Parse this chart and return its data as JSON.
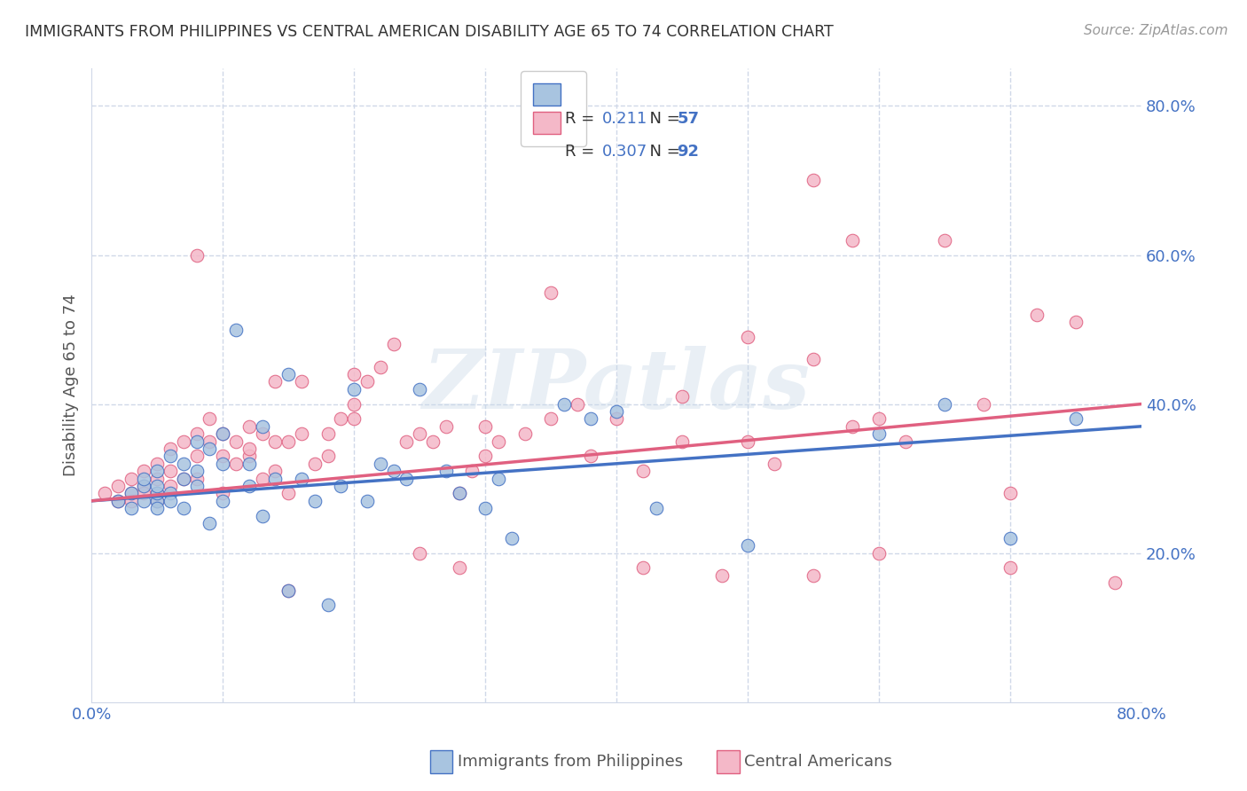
{
  "title": "IMMIGRANTS FROM PHILIPPINES VS CENTRAL AMERICAN DISABILITY AGE 65 TO 74 CORRELATION CHART",
  "source": "Source: ZipAtlas.com",
  "ylabel": "Disability Age 65 to 74",
  "xlim": [
    0.0,
    0.8
  ],
  "ylim": [
    0.0,
    0.85
  ],
  "yticks": [
    0.2,
    0.4,
    0.6,
    0.8
  ],
  "ytick_labels": [
    "20.0%",
    "40.0%",
    "60.0%",
    "80.0%"
  ],
  "xticks": [
    0.0,
    0.1,
    0.2,
    0.3,
    0.4,
    0.5,
    0.6,
    0.7,
    0.8
  ],
  "xtick_labels": [
    "0.0%",
    "",
    "",
    "",
    "",
    "",
    "",
    "",
    "80.0%"
  ],
  "blue_color": "#a8c4e0",
  "blue_line_color": "#4472c4",
  "pink_color": "#f4b8c8",
  "pink_line_color": "#e06080",
  "legend_blue_R": "0.211",
  "legend_blue_N": "57",
  "legend_pink_R": "0.307",
  "legend_pink_N": "92",
  "watermark": "ZIPatlas",
  "blue_scatter_x": [
    0.02,
    0.03,
    0.03,
    0.04,
    0.04,
    0.04,
    0.05,
    0.05,
    0.05,
    0.05,
    0.05,
    0.06,
    0.06,
    0.06,
    0.07,
    0.07,
    0.07,
    0.08,
    0.08,
    0.08,
    0.09,
    0.09,
    0.1,
    0.1,
    0.1,
    0.11,
    0.12,
    0.12,
    0.13,
    0.13,
    0.14,
    0.15,
    0.15,
    0.16,
    0.17,
    0.18,
    0.19,
    0.2,
    0.21,
    0.22,
    0.23,
    0.24,
    0.25,
    0.27,
    0.28,
    0.3,
    0.31,
    0.32,
    0.36,
    0.38,
    0.4,
    0.43,
    0.5,
    0.6,
    0.65,
    0.7,
    0.75
  ],
  "blue_scatter_y": [
    0.27,
    0.28,
    0.26,
    0.29,
    0.3,
    0.27,
    0.27,
    0.26,
    0.31,
    0.28,
    0.29,
    0.33,
    0.28,
    0.27,
    0.3,
    0.32,
    0.26,
    0.35,
    0.31,
    0.29,
    0.34,
    0.24,
    0.36,
    0.32,
    0.27,
    0.5,
    0.32,
    0.29,
    0.37,
    0.25,
    0.3,
    0.15,
    0.44,
    0.3,
    0.27,
    0.13,
    0.29,
    0.42,
    0.27,
    0.32,
    0.31,
    0.3,
    0.42,
    0.31,
    0.28,
    0.26,
    0.3,
    0.22,
    0.4,
    0.38,
    0.39,
    0.26,
    0.21,
    0.36,
    0.4,
    0.22,
    0.38
  ],
  "pink_scatter_x": [
    0.01,
    0.02,
    0.02,
    0.03,
    0.03,
    0.03,
    0.04,
    0.04,
    0.04,
    0.05,
    0.05,
    0.05,
    0.05,
    0.06,
    0.06,
    0.06,
    0.07,
    0.07,
    0.08,
    0.08,
    0.08,
    0.09,
    0.09,
    0.1,
    0.1,
    0.1,
    0.11,
    0.11,
    0.12,
    0.12,
    0.12,
    0.13,
    0.13,
    0.14,
    0.14,
    0.14,
    0.15,
    0.15,
    0.16,
    0.16,
    0.17,
    0.18,
    0.19,
    0.2,
    0.2,
    0.21,
    0.22,
    0.23,
    0.24,
    0.25,
    0.26,
    0.27,
    0.28,
    0.29,
    0.3,
    0.31,
    0.33,
    0.35,
    0.37,
    0.4,
    0.42,
    0.45,
    0.48,
    0.5,
    0.52,
    0.55,
    0.58,
    0.6,
    0.62,
    0.55,
    0.58,
    0.65,
    0.68,
    0.7,
    0.72,
    0.5,
    0.3,
    0.25,
    0.35,
    0.45,
    0.55,
    0.6,
    0.7,
    0.75,
    0.78,
    0.2,
    0.38,
    0.28,
    0.15,
    0.42,
    0.18,
    0.08
  ],
  "pink_scatter_y": [
    0.28,
    0.29,
    0.27,
    0.28,
    0.3,
    0.27,
    0.31,
    0.29,
    0.28,
    0.32,
    0.3,
    0.28,
    0.27,
    0.34,
    0.31,
    0.29,
    0.35,
    0.3,
    0.36,
    0.33,
    0.3,
    0.35,
    0.38,
    0.33,
    0.36,
    0.28,
    0.35,
    0.32,
    0.37,
    0.33,
    0.34,
    0.36,
    0.3,
    0.43,
    0.35,
    0.31,
    0.35,
    0.28,
    0.43,
    0.36,
    0.32,
    0.36,
    0.38,
    0.44,
    0.4,
    0.43,
    0.45,
    0.48,
    0.35,
    0.36,
    0.35,
    0.37,
    0.28,
    0.31,
    0.37,
    0.35,
    0.36,
    0.38,
    0.4,
    0.38,
    0.31,
    0.35,
    0.17,
    0.35,
    0.32,
    0.17,
    0.37,
    0.38,
    0.35,
    0.7,
    0.62,
    0.62,
    0.4,
    0.28,
    0.52,
    0.49,
    0.33,
    0.2,
    0.55,
    0.41,
    0.46,
    0.2,
    0.18,
    0.51,
    0.16,
    0.38,
    0.33,
    0.18,
    0.15,
    0.18,
    0.33,
    0.6
  ],
  "blue_trend_x": [
    0.0,
    0.8
  ],
  "blue_trend_y": [
    0.27,
    0.37
  ],
  "pink_trend_x": [
    0.0,
    0.8
  ],
  "pink_trend_y": [
    0.27,
    0.4
  ],
  "bg_color": "#ffffff",
  "grid_color": "#d0d8e8",
  "title_color": "#333333",
  "axis_label_color": "#4472c4",
  "watermark_color": "#c8d8e8",
  "watermark_alpha": 0.4
}
